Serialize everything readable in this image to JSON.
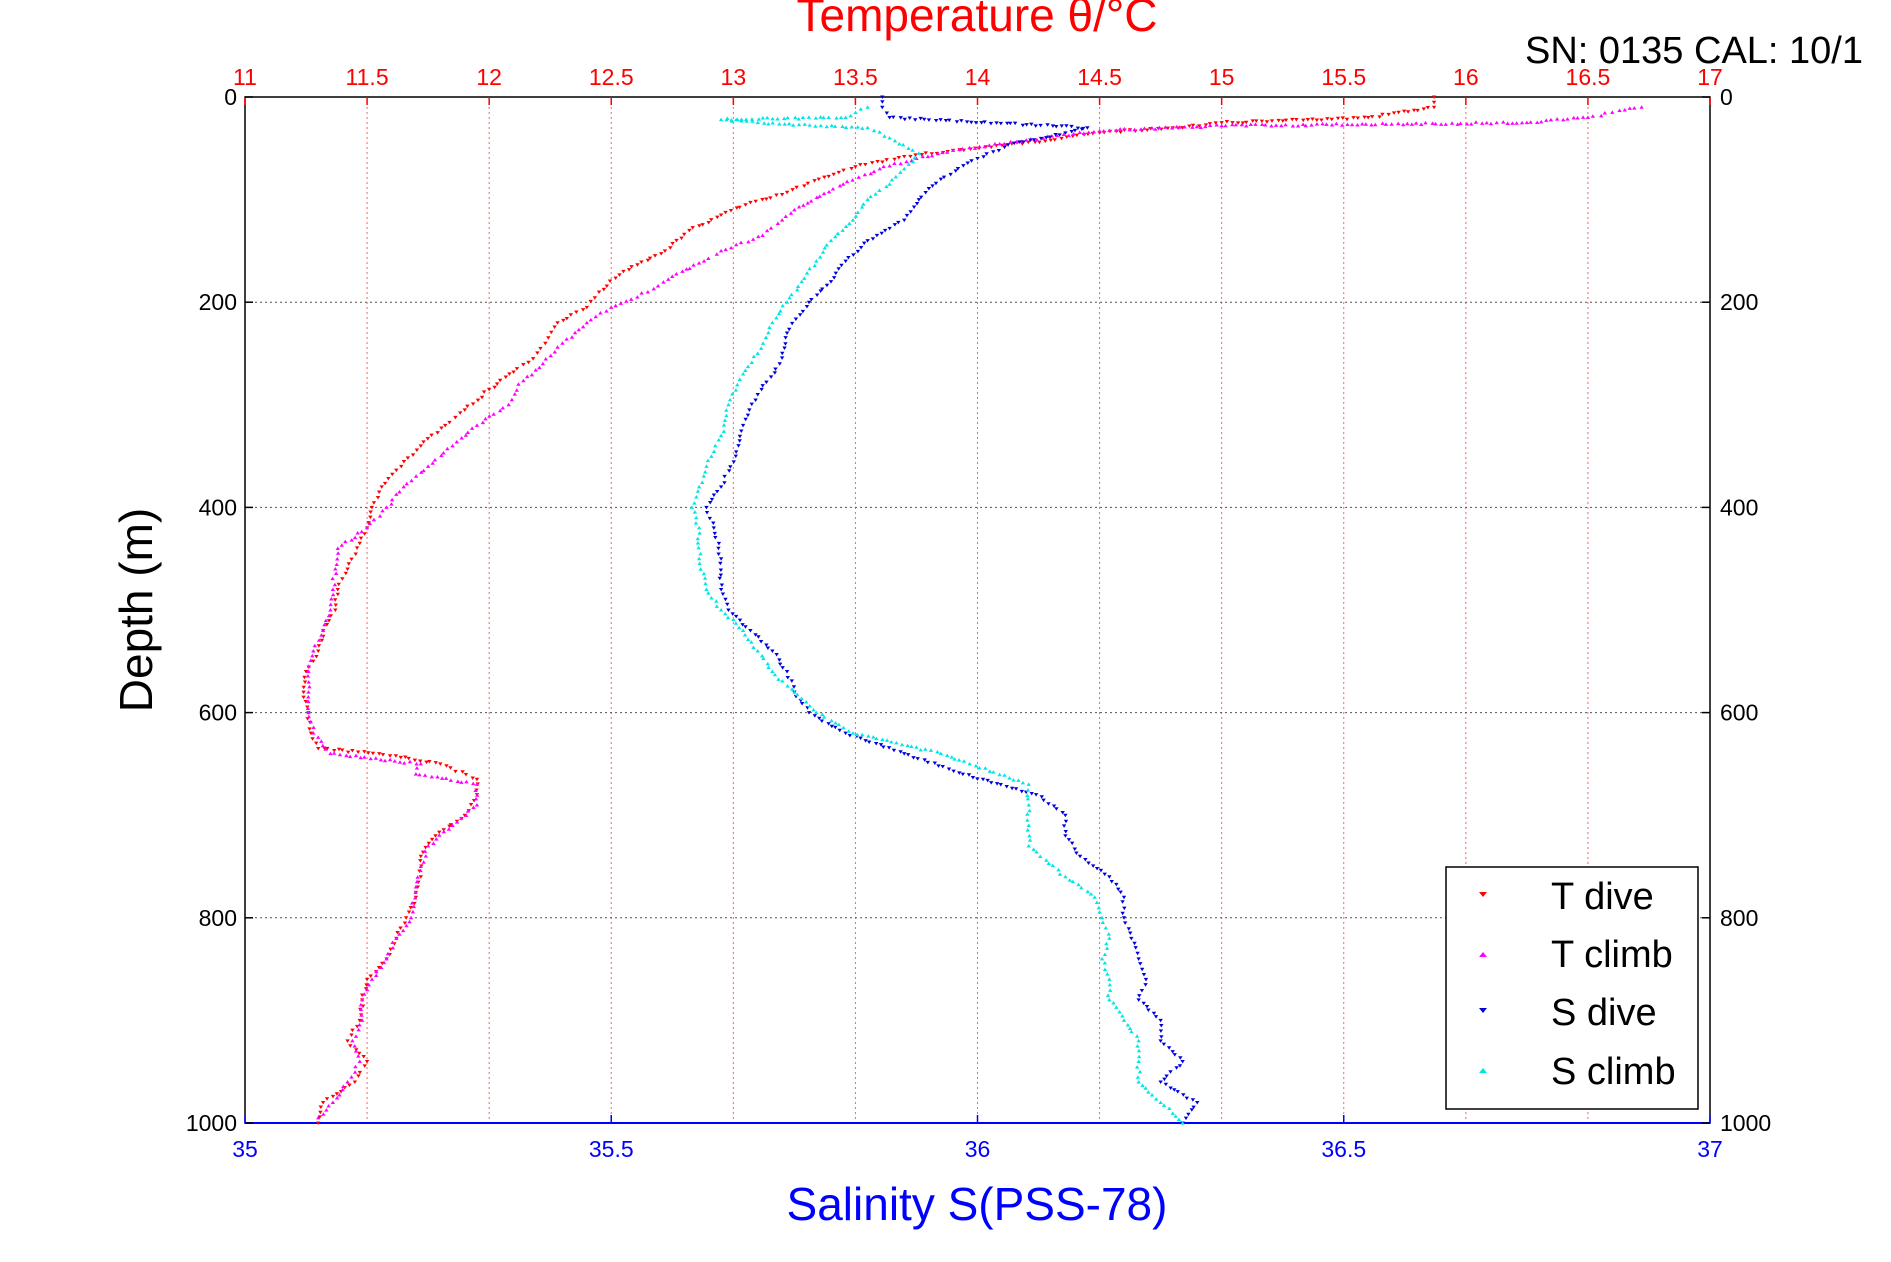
{
  "chart_data": {
    "type": "scatter",
    "title": "Temperature θ/°C",
    "annotation": "SN: 0135  CAL: 10/1",
    "ylabel": "Depth (m)",
    "xlabel": "Salinity S(PSS-78)",
    "y_axis": {
      "range": [
        0,
        1000
      ],
      "reversed": true,
      "ticks": [
        "0",
        "200",
        "400",
        "600",
        "800",
        "1000"
      ]
    },
    "x_axis_bottom": {
      "label": "Salinity S(PSS-78)",
      "range": [
        35,
        37
      ],
      "ticks": [
        "35",
        "35.5",
        "36",
        "36.5",
        "37"
      ]
    },
    "x_axis_top": {
      "label": "Temperature θ/°C",
      "range": [
        11,
        17
      ],
      "ticks": [
        "11",
        "11.5",
        "12",
        "12.5",
        "13",
        "13.5",
        "14",
        "14.5",
        "15",
        "15.5",
        "16",
        "16.5",
        "17"
      ]
    },
    "grid": true,
    "legend": {
      "placement": "bottom-right",
      "entries": [
        "T dive",
        "T climb",
        "S dive",
        "S climb"
      ]
    },
    "colors": {
      "title": "#ff0000",
      "salinity_axis": "#0000ff",
      "t_dive": "#ff0000",
      "t_climb": "#ff00ff",
      "s_dive": "#0000dd",
      "s_climb": "#00e5e5"
    },
    "series": [
      {
        "name": "T dive",
        "axis": "top",
        "marker": "triangle-down",
        "points": [
          [
            15.87,
            0
          ],
          [
            15.87,
            10
          ],
          [
            15.6,
            20
          ],
          [
            15.0,
            25
          ],
          [
            14.8,
            30
          ],
          [
            14.5,
            35
          ],
          [
            14.3,
            42
          ],
          [
            14.1,
            47
          ],
          [
            13.9,
            52
          ],
          [
            13.7,
            58
          ],
          [
            13.5,
            68
          ],
          [
            13.35,
            80
          ],
          [
            13.2,
            95
          ],
          [
            13.05,
            105
          ],
          [
            12.95,
            115
          ],
          [
            12.82,
            130
          ],
          [
            12.72,
            150
          ],
          [
            12.55,
            170
          ],
          [
            12.45,
            190
          ],
          [
            12.4,
            205
          ],
          [
            12.28,
            220
          ],
          [
            12.23,
            240
          ],
          [
            12.18,
            255
          ],
          [
            12.1,
            268
          ],
          [
            12.0,
            285
          ],
          [
            11.9,
            305
          ],
          [
            11.82,
            320
          ],
          [
            11.72,
            340
          ],
          [
            11.64,
            360
          ],
          [
            11.56,
            380
          ],
          [
            11.52,
            400
          ],
          [
            11.5,
            420
          ],
          [
            11.47,
            435
          ],
          [
            11.42,
            460
          ],
          [
            11.38,
            480
          ],
          [
            11.37,
            500
          ],
          [
            11.32,
            520
          ],
          [
            11.3,
            540
          ],
          [
            11.25,
            560
          ],
          [
            11.24,
            580
          ],
          [
            11.26,
            600
          ],
          [
            11.27,
            620
          ],
          [
            11.3,
            635
          ],
          [
            11.55,
            640
          ],
          [
            11.8,
            650
          ],
          [
            11.95,
            665
          ],
          [
            11.95,
            680
          ],
          [
            11.9,
            700
          ],
          [
            11.78,
            720
          ],
          [
            11.72,
            740
          ],
          [
            11.72,
            760
          ],
          [
            11.7,
            780
          ],
          [
            11.66,
            800
          ],
          [
            11.62,
            820
          ],
          [
            11.58,
            840
          ],
          [
            11.5,
            860
          ],
          [
            11.48,
            880
          ],
          [
            11.47,
            900
          ],
          [
            11.42,
            920
          ],
          [
            11.5,
            940
          ],
          [
            11.45,
            960
          ],
          [
            11.32,
            980
          ],
          [
            11.3,
            1000
          ]
        ]
      },
      {
        "name": "T climb",
        "axis": "top",
        "marker": "triangle-up",
        "points": [
          [
            16.72,
            10
          ],
          [
            16.6,
            15
          ],
          [
            16.5,
            20
          ],
          [
            16.25,
            25
          ],
          [
            15.0,
            28
          ],
          [
            14.5,
            33
          ],
          [
            14.2,
            42
          ],
          [
            13.9,
            52
          ],
          [
            13.75,
            60
          ],
          [
            13.6,
            70
          ],
          [
            13.45,
            85
          ],
          [
            13.25,
            110
          ],
          [
            13.2,
            120
          ],
          [
            13.12,
            135
          ],
          [
            12.95,
            150
          ],
          [
            12.88,
            160
          ],
          [
            12.75,
            175
          ],
          [
            12.65,
            190
          ],
          [
            12.5,
            205
          ],
          [
            12.4,
            220
          ],
          [
            12.3,
            240
          ],
          [
            12.22,
            260
          ],
          [
            12.12,
            280
          ],
          [
            12.08,
            300
          ],
          [
            11.95,
            320
          ],
          [
            11.85,
            340
          ],
          [
            11.75,
            360
          ],
          [
            11.65,
            380
          ],
          [
            11.58,
            400
          ],
          [
            11.5,
            420
          ],
          [
            11.38,
            440
          ],
          [
            11.37,
            460
          ],
          [
            11.36,
            480
          ],
          [
            11.35,
            500
          ],
          [
            11.32,
            520
          ],
          [
            11.28,
            540
          ],
          [
            11.26,
            560
          ],
          [
            11.26,
            580
          ],
          [
            11.26,
            600
          ],
          [
            11.28,
            620
          ],
          [
            11.35,
            640
          ],
          [
            11.72,
            650
          ],
          [
            11.7,
            660
          ],
          [
            11.95,
            670
          ],
          [
            11.95,
            690
          ],
          [
            11.85,
            710
          ],
          [
            11.75,
            730
          ],
          [
            11.72,
            750
          ],
          [
            11.7,
            770
          ],
          [
            11.68,
            800
          ],
          [
            11.62,
            820
          ],
          [
            11.58,
            840
          ],
          [
            11.52,
            860
          ],
          [
            11.48,
            880
          ],
          [
            11.48,
            900
          ],
          [
            11.44,
            920
          ],
          [
            11.47,
            940
          ],
          [
            11.42,
            960
          ],
          [
            11.36,
            980
          ],
          [
            11.3,
            995
          ]
        ]
      },
      {
        "name": "S dive",
        "axis": "bottom",
        "marker": "triangle-down",
        "points": [
          [
            35.87,
            0
          ],
          [
            35.87,
            10
          ],
          [
            35.88,
            20
          ],
          [
            36.15,
            30
          ],
          [
            36.12,
            35
          ],
          [
            36.05,
            45
          ],
          [
            36.0,
            60
          ],
          [
            35.95,
            80
          ],
          [
            35.92,
            100
          ],
          [
            35.9,
            120
          ],
          [
            35.85,
            140
          ],
          [
            35.82,
            160
          ],
          [
            35.8,
            180
          ],
          [
            35.77,
            200
          ],
          [
            35.74,
            230
          ],
          [
            35.73,
            260
          ],
          [
            35.7,
            290
          ],
          [
            35.68,
            320
          ],
          [
            35.67,
            350
          ],
          [
            35.65,
            380
          ],
          [
            35.63,
            400
          ],
          [
            35.64,
            420
          ],
          [
            35.65,
            450
          ],
          [
            35.65,
            480
          ],
          [
            35.66,
            500
          ],
          [
            35.69,
            520
          ],
          [
            35.72,
            540
          ],
          [
            35.74,
            560
          ],
          [
            35.75,
            580
          ],
          [
            35.77,
            600
          ],
          [
            35.82,
            620
          ],
          [
            35.9,
            640
          ],
          [
            35.98,
            660
          ],
          [
            36.08,
            680
          ],
          [
            36.12,
            700
          ],
          [
            36.12,
            720
          ],
          [
            36.14,
            740
          ],
          [
            36.18,
            760
          ],
          [
            36.2,
            780
          ],
          [
            36.2,
            800
          ],
          [
            36.21,
            820
          ],
          [
            36.22,
            840
          ],
          [
            36.23,
            860
          ],
          [
            36.22,
            880
          ],
          [
            36.25,
            900
          ],
          [
            36.25,
            920
          ],
          [
            36.28,
            940
          ],
          [
            36.25,
            960
          ],
          [
            36.3,
            980
          ],
          [
            36.28,
            1000
          ]
        ]
      },
      {
        "name": "S climb",
        "axis": "bottom",
        "marker": "triangle-up",
        "points": [
          [
            35.85,
            10
          ],
          [
            35.82,
            20
          ],
          [
            35.65,
            22
          ],
          [
            35.7,
            25
          ],
          [
            35.85,
            30
          ],
          [
            35.88,
            40
          ],
          [
            35.92,
            55
          ],
          [
            35.9,
            70
          ],
          [
            35.88,
            85
          ],
          [
            35.85,
            100
          ],
          [
            35.83,
            120
          ],
          [
            35.8,
            140
          ],
          [
            35.78,
            160
          ],
          [
            35.76,
            180
          ],
          [
            35.74,
            200
          ],
          [
            35.72,
            220
          ],
          [
            35.7,
            250
          ],
          [
            35.68,
            270
          ],
          [
            35.66,
            300
          ],
          [
            35.65,
            330
          ],
          [
            35.63,
            360
          ],
          [
            35.62,
            380
          ],
          [
            35.61,
            400
          ],
          [
            35.62,
            420
          ],
          [
            35.62,
            450
          ],
          [
            35.63,
            480
          ],
          [
            35.65,
            500
          ],
          [
            35.68,
            520
          ],
          [
            35.7,
            540
          ],
          [
            35.72,
            560
          ],
          [
            35.75,
            580
          ],
          [
            35.78,
            600
          ],
          [
            35.83,
            620
          ],
          [
            35.95,
            640
          ],
          [
            36.07,
            670
          ],
          [
            36.07,
            690
          ],
          [
            36.07,
            710
          ],
          [
            36.07,
            730
          ],
          [
            36.12,
            760
          ],
          [
            36.16,
            780
          ],
          [
            36.17,
            800
          ],
          [
            36.18,
            820
          ],
          [
            36.17,
            840
          ],
          [
            36.18,
            860
          ],
          [
            36.18,
            880
          ],
          [
            36.2,
            900
          ],
          [
            36.22,
            920
          ],
          [
            36.22,
            940
          ],
          [
            36.22,
            960
          ],
          [
            36.25,
            980
          ],
          [
            36.28,
            1000
          ]
        ]
      }
    ]
  }
}
